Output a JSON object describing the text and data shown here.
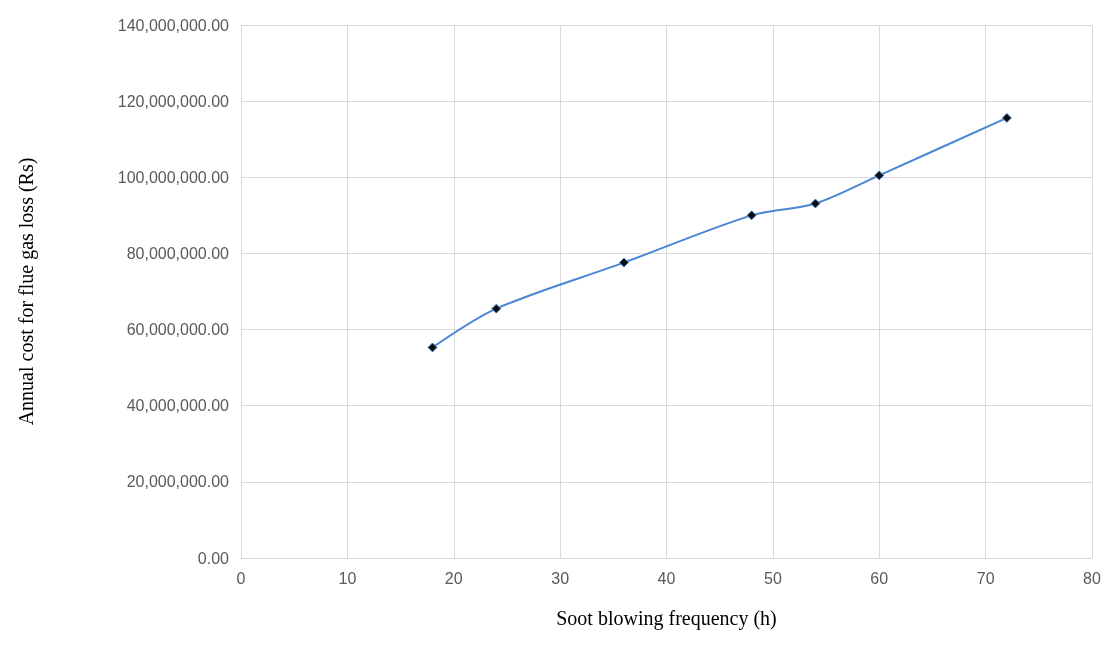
{
  "chart_data": {
    "type": "line",
    "xlabel": "Soot blowing frequency (h)",
    "ylabel": "Annual cost for flue gas loss (Rs)",
    "x": [
      18,
      24,
      36,
      48,
      54,
      60,
      72
    ],
    "series": [
      {
        "color": "#4a86d4",
        "values": [
          55300000,
          65500000,
          77600000,
          90000000,
          93100000,
          100500000,
          115600000
        ]
      }
    ],
    "xlim": [
      0,
      80
    ],
    "xticks": [
      0,
      10,
      20,
      30,
      40,
      50,
      60,
      70,
      80
    ],
    "ylim": [
      0,
      140000000
    ],
    "yticks": [
      {
        "value": 0,
        "label": "0.00"
      },
      {
        "value": 20000000,
        "label": "20,000,000.00"
      },
      {
        "value": 40000000,
        "label": "40,000,000.00"
      },
      {
        "value": 60000000,
        "label": "60,000,000.00"
      },
      {
        "value": 80000000,
        "label": "80,000,000.00"
      },
      {
        "value": 100000000,
        "label": "100,000,000.00"
      },
      {
        "value": 120000000,
        "label": "120,000,000.00"
      },
      {
        "value": 140000000,
        "label": "140,000,000.00"
      }
    ],
    "grid": true,
    "marker": "diamond",
    "line_style": "solid"
  }
}
